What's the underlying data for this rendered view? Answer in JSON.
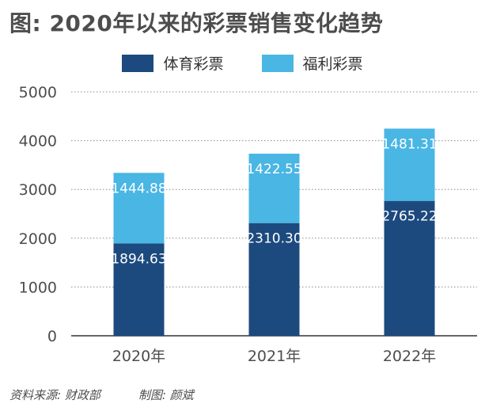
{
  "chart_data": {
    "type": "bar",
    "stacked": true,
    "title": "图: 2020年以来的彩票销售变化趋势",
    "categories": [
      "2020年",
      "2021年",
      "2022年"
    ],
    "series": [
      {
        "name": "体育彩票",
        "values": [
          1894.63,
          2310.3,
          2765.22
        ],
        "labels": [
          "1894.63",
          "2310.30",
          "2765.22"
        ],
        "color": "#1c4a7e"
      },
      {
        "name": "福利彩票",
        "values": [
          1444.88,
          1422.55,
          1481.31
        ],
        "labels": [
          "1444.88",
          "1422.55",
          "1481.31"
        ],
        "color": "#49b6e4"
      }
    ],
    "ylim": [
      0,
      5000
    ],
    "yticks": [
      0,
      1000,
      2000,
      3000,
      4000,
      5000
    ],
    "grid": true,
    "legend_position": "top-center"
  },
  "footer": {
    "source": "资料来源: 财政部",
    "credit": "制图: 颜斌"
  }
}
